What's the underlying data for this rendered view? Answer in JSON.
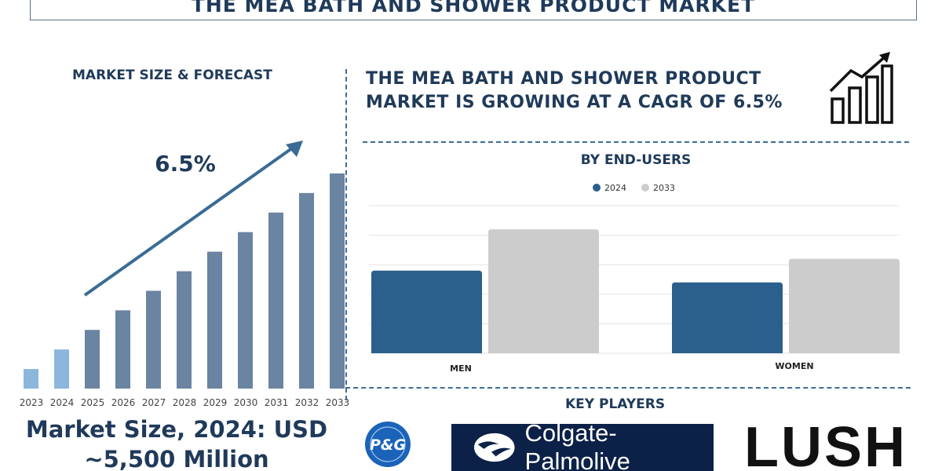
{
  "title": "THE MEA BATH AND SHOWER PRODUCT MARKET",
  "left_panel": {
    "heading": "MARKET SIZE & FORECAST",
    "market_size_line1": "Market Size, 2024: USD",
    "market_size_line2": "~5,500 Million"
  },
  "right_panel": {
    "cagr_line1": "THE MEA BATH AND SHOWER PRODUCT",
    "cagr_line2": "MARKET IS GROWING AT A CAGR OF 6.5%",
    "key_players_heading": "KEY PLAYERS",
    "key_players": [
      "P&G",
      "Colgate-Palmolive",
      "LUSH"
    ]
  },
  "icons": {
    "growth": "growth-chart-icon",
    "trend": "trend-arrow-icon"
  },
  "colors": {
    "navy": "#1f3a5a",
    "bar_forecast": "#6a84a2",
    "bar_highlight": "#8cb6dc",
    "series_2024": "#2b5f8c",
    "series_2033": "#cccccc",
    "colgate_bg": "#0b2147",
    "pg_blue": "#1b63b8"
  },
  "chart_data": [
    {
      "type": "bar",
      "title": "MARKET SIZE & FORECAST",
      "categories": [
        "2023",
        "2024",
        "2025",
        "2026",
        "2027",
        "2028",
        "2029",
        "2030",
        "2031",
        "2032",
        "2033"
      ],
      "values": [
        25,
        50,
        75,
        100,
        125,
        150,
        175,
        200,
        225,
        250,
        275
      ],
      "annotation": "6.5%",
      "ylim": [
        0,
        290
      ],
      "highlighted": [
        "2023",
        "2024"
      ]
    },
    {
      "type": "bar",
      "title": "BY END-USERS",
      "categories": [
        "MEN",
        "WOMEN"
      ],
      "series": [
        {
          "name": "2024",
          "values": [
            56,
            48
          ]
        },
        {
          "name": "2033",
          "values": [
            84,
            64
          ]
        }
      ],
      "ylim": [
        0,
        100
      ],
      "legend": "top-center",
      "grid": true
    }
  ]
}
